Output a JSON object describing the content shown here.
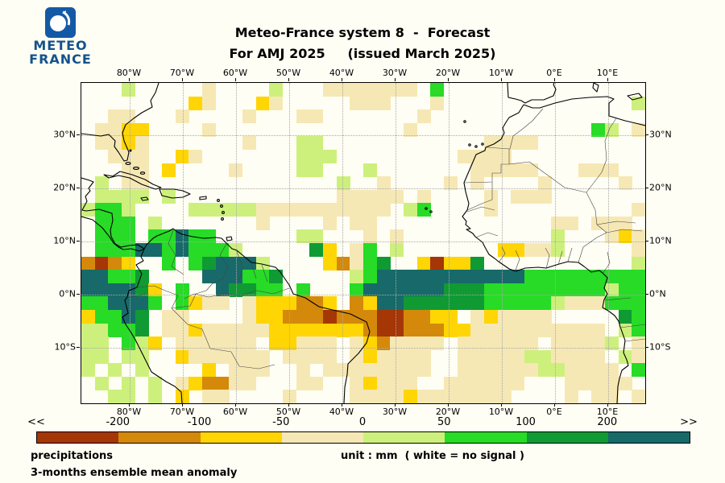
{
  "header": {
    "logo_line1": "METEO",
    "logo_line2": "FRANCE",
    "logo_color": "#14538C",
    "logo_box_color": "#1459A5",
    "title_line1": "Meteo-France system 8  -  Forecast",
    "title_line2": "For AMJ 2025     (issued March 2025)"
  },
  "legend": {
    "precipitations": "precipitations",
    "anomaly": "3-months ensemble mean anomaly",
    "units": "unit : mm  ( white = no signal )"
  },
  "chart_data": {
    "type": "heatmap",
    "title": "Meteo-France system 8 - Forecast",
    "subtitle": "For AMJ 2025 (issued March 2025)",
    "variable": "precipitations",
    "statistic": "3-months ensemble mean anomaly",
    "units": "mm",
    "no_signal": "white = no signal",
    "lon_ticks": [
      "80°W",
      "70°W",
      "60°W",
      "50°W",
      "40°W",
      "30°W",
      "20°W",
      "10°W",
      "0°E",
      "10°E"
    ],
    "lat_ticks": [
      "30°N",
      "20°N",
      "10°N",
      "0°N",
      "10°S"
    ],
    "lon_range_deg": [
      -89.1,
      16.9
    ],
    "lat_range_deg": [
      -20.45,
      39.85
    ],
    "grid_on": true,
    "legend_position": "bottom",
    "scale_breaks": [
      "<<",
      "-200",
      "-100",
      "-50",
      "0",
      "50",
      "100",
      "200",
      ">>"
    ],
    "scale_colors": [
      "#A53606",
      "#D4890A",
      "#FFD503",
      "#F6E8B4",
      "#CDF07C",
      "#27DB27",
      "#109A34",
      "#176A69"
    ],
    "palette": {
      "r": "#A53606",
      "o": "#D4890A",
      "y": "#FFD503",
      "p": "#F6E8B4",
      "l": "#CDF07C",
      "g": "#27DB27",
      "d": "#109A34",
      "t": "#176A69"
    },
    "cell_value_ranges": {
      "r": "below -200 mm",
      "o": "-200 to -100 mm",
      "y": "-100 to -50 mm",
      "p": "-50 to 0 mm",
      ".": "no signal (white)",
      "l": "0 to 50 mm",
      "g": "50 to 100 mm",
      "d": "100 to 200 mm",
      "t": "above 200 mm"
    },
    "grid_cols": 42,
    "grid_rows": 24,
    "grid": [
      "...l.....p....l...ppppppp.g...............",
      "........yp...yp.....ppp...p..............l",
      "..pp...p....p...pp.......p................",
      ".ppyy....p..............p.............gl.p",
      ".ppyp.......p...ll............pppp........",
      "..ppp..yp.......lll.........pppp..........",
      "...pp.y....p....ll...l.......ppppp...ppp..",
      ".l.pp..............l..p....p.p....p.....p.",
      ".llll.l............ppppp.p....p.ppp.......",
      "lggl....lllllpppppppppp.lg....p..........p",
      ".ggg.l.......p....p.pp.............pp.ppp.",
      ".ggg.ggtgg......ll...p.p...........l...pyp",
      ".gggttgtgggl.....dy.pg.l.......yyppl.....p",
      "oroy..g.gdtttl....yopgd..yryyd...........l",
      "ttggd....tttggd.....lgtttttttttttggggggggg",
      "ttttdy.g..tddgg.g...gttttttdddggggggggglggg",
      "ggtttg.gypp.pyyyooy.oyttddddddggggglpppggg",
      "yggtd.pp....pyyooorooorrooyy.pypppp.....dg",
      "llggd.ppypppppyyyyyyyorroooyypppppppppp.lg",
      "ll.gly.pppppp.yyppp.pyopppp.pppppp.ppppl.p",
      "ll.ll..ypppppp.pppp.pypppp..pppppllpppp.lp",
      "l.l.l....y.ppp..p.pppppppp..ppppppllpppp.g",
      ".l.l.l.pyoopp...pp..pyppp..pppppp...ppppp.",
      "..ll.l.y.pp....p....ppppyppppppp....p.pp.p"
    ]
  }
}
